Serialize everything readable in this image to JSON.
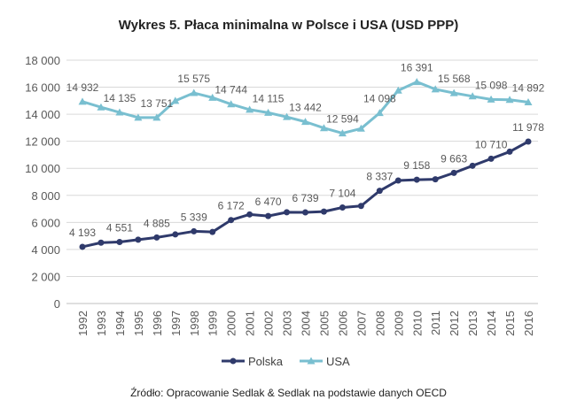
{
  "chart_data": {
    "type": "line",
    "title": "Wykres 5. Płaca minimalna w Polsce i USA (USD PPP)",
    "source": "Źródło: Opracowanie Sedlak & Sedlak na podstawie danych OECD",
    "x": [
      "1992",
      "1993",
      "1994",
      "1995",
      "1996",
      "1997",
      "1998",
      "1999",
      "2000",
      "2001",
      "2002",
      "2003",
      "2004",
      "2005",
      "2006",
      "2007",
      "2008",
      "2009",
      "2010",
      "2011",
      "2012",
      "2013",
      "2014",
      "2015",
      "2016"
    ],
    "ylim": [
      0,
      18000
    ],
    "yticks": [
      0,
      2000,
      4000,
      6000,
      8000,
      10000,
      12000,
      14000,
      16000,
      18000
    ],
    "ytick_labels": [
      "0",
      "2 000",
      "4 000",
      "6 000",
      "8 000",
      "10 000",
      "12 000",
      "14 000",
      "16 000",
      "18 000"
    ],
    "grid": true,
    "legend": "bottom",
    "series": [
      {
        "name": "Polska",
        "color": "#2f3a6b",
        "marker": "circle",
        "values": [
          4193,
          4500,
          4551,
          4720,
          4885,
          5110,
          5339,
          5290,
          6172,
          6590,
          6470,
          6750,
          6739,
          6800,
          7104,
          7215,
          8337,
          9100,
          9158,
          9190,
          9663,
          10190,
          10710,
          11230,
          11978
        ],
        "labels": [
          "4 193",
          null,
          "4 551",
          null,
          "4 885",
          null,
          "5 339",
          null,
          "6 172",
          null,
          "6 470",
          null,
          "6 739",
          null,
          "7 104",
          null,
          "8 337",
          null,
          "9 158",
          null,
          "9 663",
          null,
          "10 710",
          null,
          "11 978"
        ]
      },
      {
        "name": "USA",
        "color": "#79bfd0",
        "marker": "triangle",
        "values": [
          14932,
          14518,
          14135,
          13755,
          13751,
          15000,
          15575,
          15230,
          14744,
          14340,
          14115,
          13800,
          13442,
          12980,
          12594,
          12940,
          14098,
          15760,
          16391,
          15850,
          15568,
          15330,
          15098,
          15070,
          14892
        ],
        "labels": [
          "14 932",
          null,
          "14 135",
          null,
          "13 751",
          null,
          "15 575",
          null,
          "14 744",
          null,
          "14 115",
          null,
          "13 442",
          null,
          "12 594",
          null,
          "14 098",
          null,
          "16 391",
          null,
          "15 568",
          null,
          "15 098",
          null,
          "14 892"
        ]
      }
    ]
  }
}
